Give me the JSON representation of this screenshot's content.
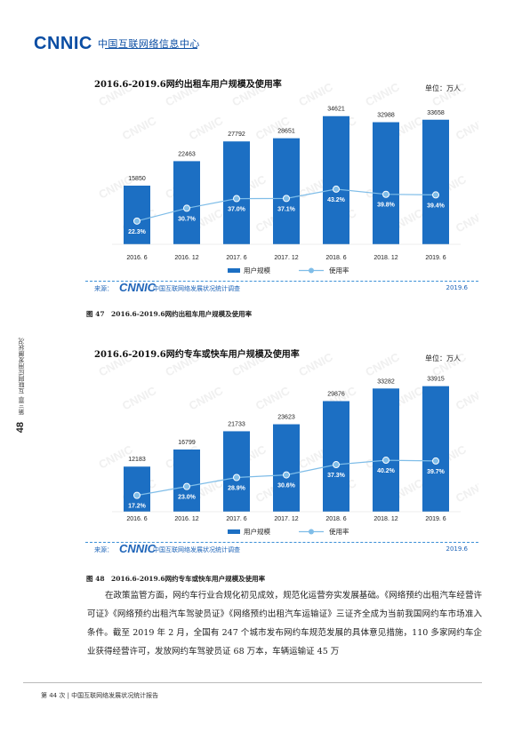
{
  "header": {
    "logo_text": "CNNIC",
    "logo_cn": "中国互联网络信息中心"
  },
  "side": {
    "page_number": "48",
    "chapter_text": "第三章 互联网应用发展状况"
  },
  "charts": [
    {
      "title": "2016.6-2019.6网约出租车用户规模及使用率",
      "unit": "单位：万人",
      "legend_bar": "用户规模",
      "legend_line": "使用率",
      "source_label": "来源：",
      "source_logo": "CNNIC",
      "source_name": "中国互联网络发展状况统计调查",
      "source_year": "2019.6",
      "caption": "图 47　2016.6-2019.6网约出租车用户规模及使用率"
    },
    {
      "title": "2016.6-2019.6网约专车或快车用户规模及使用率",
      "unit": "单位：万人",
      "legend_bar": "用户规模",
      "legend_line": "使用率",
      "source_label": "来源：",
      "source_logo": "CNNIC",
      "source_name": "中国互联网络发展状况统计调查",
      "source_year": "2019.6",
      "caption": "图 48　2016.6-2019.6网约专车或快车用户规模及使用率"
    }
  ],
  "chart_data": [
    {
      "type": "bar",
      "title": "2016.6-2019.6网约出租车用户规模及使用率",
      "categories": [
        "2016. 6",
        "2016. 12",
        "2017. 6",
        "2017. 12",
        "2018. 6",
        "2018. 12",
        "2019. 6"
      ],
      "series": [
        {
          "name": "用户规模",
          "type": "bar",
          "values": [
            15850,
            22463,
            27792,
            28651,
            34621,
            32988,
            33658
          ],
          "labels": [
            "15850",
            "22463",
            "27792",
            "28651",
            "34621",
            "32988",
            "33658"
          ],
          "color": "#1c6fc3"
        },
        {
          "name": "使用率",
          "type": "line",
          "values": [
            22.3,
            30.7,
            37.0,
            37.1,
            43.2,
            39.8,
            39.4
          ],
          "labels": [
            "22.3%",
            "30.7%",
            "37.0%",
            "37.1%",
            "43.2%",
            "39.8%",
            "39.4%"
          ],
          "color": "#7fbde8"
        }
      ],
      "legend_position": "bottom"
    },
    {
      "type": "bar",
      "title": "2016.6-2019.6网约专车或快车用户规模及使用率",
      "categories": [
        "2016. 6",
        "2016. 12",
        "2017. 6",
        "2017. 12",
        "2018. 6",
        "2018. 12",
        "2019. 6"
      ],
      "series": [
        {
          "name": "用户规模",
          "type": "bar",
          "values": [
            12183,
            16799,
            21733,
            23623,
            29876,
            33282,
            33915
          ],
          "labels": [
            "12183",
            "16799",
            "21733",
            "23623",
            "29876",
            "33282",
            "33915"
          ],
          "color": "#1c6fc3"
        },
        {
          "name": "使用率",
          "type": "line",
          "values": [
            17.2,
            23.0,
            28.9,
            30.6,
            37.3,
            40.2,
            39.7
          ],
          "labels": [
            "17.2%",
            "23.0%",
            "28.9%",
            "30.6%",
            "37.3%",
            "40.2%",
            "39.7%"
          ],
          "color": "#7fbde8"
        }
      ],
      "legend_position": "bottom"
    }
  ],
  "body": {
    "paragraph": "在政策监管方面，网约车行业合规化初见成效，规范化运营夯实发展基础。《网络预约出租汽车经营许可证》《网络预约出租汽车驾驶员证》《网络预约出租汽车运输证》三证齐全成为当前我国网约车市场准入条件。截至 2019 年 2 月，全国有 247 个城市发布网约车规范发展的具体意见措施，110 多家网约车企业获得经营许可，发放网约车驾驶员证 68 万本，车辆运输证 45 万"
  },
  "footer": {
    "text": "第 44 次 | 中国互联网络发展状况统计报告"
  }
}
